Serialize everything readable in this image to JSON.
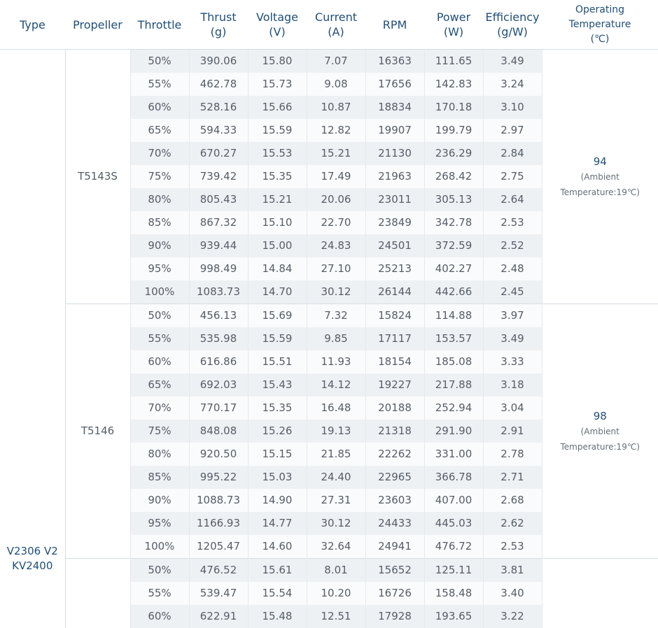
{
  "headers": [
    [
      "Type"
    ],
    [
      "Propeller"
    ],
    [
      "Throttle"
    ],
    [
      "Thrust",
      "(g)"
    ],
    [
      "Voltage",
      "(V)"
    ],
    [
      "Current",
      "(A)"
    ],
    [
      "RPM"
    ],
    [
      "Power",
      "(W)"
    ],
    [
      "Efficiency",
      "(g/W)"
    ],
    [
      "Operating",
      "Temperature",
      "(℃)"
    ]
  ],
  "type_label": [
    "V2306 V2",
    "KV2400"
  ],
  "groups": [
    {
      "propeller": "T5143S",
      "temp_value": "94",
      "temp_note": [
        "(Ambient",
        "Temperature:19℃)"
      ],
      "rows": [
        [
          "50%",
          "390.06",
          "15.80",
          "7.07",
          "16363",
          "111.65",
          "3.49"
        ],
        [
          "55%",
          "462.78",
          "15.73",
          "9.08",
          "17656",
          "142.83",
          "3.24"
        ],
        [
          "60%",
          "528.16",
          "15.66",
          "10.87",
          "18834",
          "170.18",
          "3.10"
        ],
        [
          "65%",
          "594.33",
          "15.59",
          "12.82",
          "19907",
          "199.79",
          "2.97"
        ],
        [
          "70%",
          "670.27",
          "15.53",
          "15.21",
          "21130",
          "236.29",
          "2.84"
        ],
        [
          "75%",
          "739.42",
          "15.35",
          "17.49",
          "21963",
          "268.42",
          "2.75"
        ],
        [
          "80%",
          "805.43",
          "15.21",
          "20.06",
          "23011",
          "305.13",
          "2.64"
        ],
        [
          "85%",
          "867.32",
          "15.10",
          "22.70",
          "23849",
          "342.78",
          "2.53"
        ],
        [
          "90%",
          "939.44",
          "15.00",
          "24.83",
          "24501",
          "372.59",
          "2.52"
        ],
        [
          "95%",
          "998.49",
          "14.84",
          "27.10",
          "25213",
          "402.27",
          "2.48"
        ],
        [
          "100%",
          "1083.73",
          "14.70",
          "30.12",
          "26144",
          "442.66",
          "2.45"
        ]
      ]
    },
    {
      "propeller": "T5146",
      "temp_value": "98",
      "temp_note": [
        "(Ambient",
        "Temperature:19℃)"
      ],
      "rows": [
        [
          "50%",
          "456.13",
          "15.69",
          "7.32",
          "15824",
          "114.88",
          "3.97"
        ],
        [
          "55%",
          "535.98",
          "15.59",
          "9.85",
          "17117",
          "153.57",
          "3.49"
        ],
        [
          "60%",
          "616.86",
          "15.51",
          "11.93",
          "18154",
          "185.08",
          "3.33"
        ],
        [
          "65%",
          "692.03",
          "15.43",
          "14.12",
          "19227",
          "217.88",
          "3.18"
        ],
        [
          "70%",
          "770.17",
          "15.35",
          "16.48",
          "20188",
          "252.94",
          "3.04"
        ],
        [
          "75%",
          "848.08",
          "15.26",
          "19.13",
          "21318",
          "291.90",
          "2.91"
        ],
        [
          "80%",
          "920.50",
          "15.15",
          "21.85",
          "22262",
          "331.00",
          "2.78"
        ],
        [
          "85%",
          "995.22",
          "15.03",
          "24.40",
          "22965",
          "366.78",
          "2.71"
        ],
        [
          "90%",
          "1088.73",
          "14.90",
          "27.31",
          "23603",
          "407.00",
          "2.68"
        ],
        [
          "95%",
          "1166.93",
          "14.77",
          "30.12",
          "24433",
          "445.03",
          "2.62"
        ],
        [
          "100%",
          "1205.47",
          "14.60",
          "32.64",
          "24941",
          "476.72",
          "2.53"
        ]
      ]
    },
    {
      "propeller": "",
      "temp_value": "",
      "temp_note": [],
      "rows": [
        [
          "50%",
          "476.52",
          "15.61",
          "8.01",
          "15652",
          "125.11",
          "3.81"
        ],
        [
          "55%",
          "539.47",
          "15.54",
          "10.20",
          "16726",
          "158.48",
          "3.40"
        ],
        [
          "60%",
          "622.91",
          "15.48",
          "12.51",
          "17928",
          "193.65",
          "3.22"
        ]
      ]
    }
  ]
}
